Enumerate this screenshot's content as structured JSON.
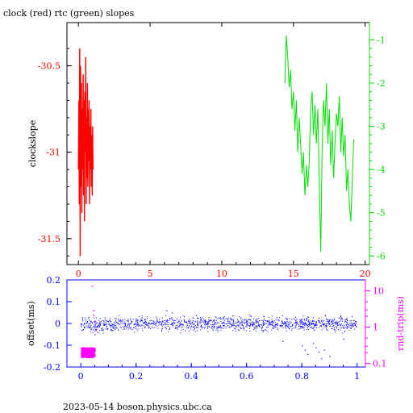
{
  "title": "clock (red) rtc (green) slopes",
  "footer": "2023-05-14 boson.physics.ubc.ca",
  "colors": {
    "clock": "#ff0000",
    "rtc": "#00dd00",
    "offset": "#0000ff",
    "rndtrip": "#ff00ff",
    "frame": "#000000"
  },
  "chart_data": [
    {
      "type": "line",
      "title": "clock (red) rtc (green) slopes",
      "ylabel": "clockslope",
      "x_ticks": [
        0,
        5,
        10,
        15,
        20
      ],
      "xlim": [
        -0.8,
        20.3
      ],
      "ylim": [
        -31.65,
        -30.25
      ],
      "y_ticks": [
        -30.5,
        -31,
        -31.5
      ],
      "y_tick_labels": [
        "-30.5",
        "-31",
        "-31.5"
      ],
      "y2lim": [
        -6.2,
        -0.6
      ],
      "y2_ticks": [
        -1,
        -2,
        -3,
        -4,
        -5,
        -6
      ],
      "y2_tick_labels": [
        "-1",
        "-2",
        "-3",
        "-4",
        "-5",
        "-6"
      ],
      "grid": false,
      "series": [
        {
          "name": "clock",
          "axis": "left",
          "x": [
            0.0,
            0.03,
            0.06,
            0.09,
            0.12,
            0.15,
            0.18,
            0.21,
            0.24,
            0.27,
            0.3,
            0.33,
            0.36,
            0.39,
            0.42,
            0.45,
            0.48,
            0.51,
            0.54,
            0.57,
            0.6,
            0.63,
            0.66,
            0.69,
            0.72,
            0.75,
            0.78,
            0.81,
            0.84,
            0.87,
            0.9,
            0.93,
            0.96,
            0.99,
            1.02
          ],
          "values": [
            -31.1,
            -30.7,
            -31.3,
            -30.4,
            -31.6,
            -30.5,
            -31.2,
            -30.6,
            -31.35,
            -30.75,
            -31.1,
            -30.55,
            -31.25,
            -30.7,
            -31.4,
            -30.65,
            -31.0,
            -30.45,
            -31.3,
            -30.8,
            -31.15,
            -30.6,
            -31.2,
            -30.75,
            -31.05,
            -30.7,
            -31.3,
            -30.85,
            -31.1,
            -30.75,
            -31.2,
            -30.9,
            -31.25,
            -30.85,
            -31.1
          ]
        },
        {
          "name": "rtc",
          "axis": "right",
          "x": [
            14.4,
            14.5,
            14.6,
            14.7,
            14.8,
            14.9,
            15.0,
            15.1,
            15.2,
            15.3,
            15.4,
            15.5,
            15.6,
            15.7,
            15.8,
            15.9,
            16.0,
            16.1,
            16.2,
            16.3,
            16.4,
            16.5,
            16.6,
            16.7,
            16.8,
            16.9,
            17.0,
            17.1,
            17.2,
            17.3,
            17.4,
            17.5,
            17.6,
            17.7,
            17.8,
            17.9,
            18.0,
            18.1,
            18.2,
            18.3,
            18.4,
            18.5,
            18.6,
            18.7,
            18.8,
            18.9,
            19.0,
            19.1,
            19.2
          ],
          "values": [
            -2.0,
            -0.9,
            -1.4,
            -2.1,
            -1.7,
            -2.6,
            -2.2,
            -3.1,
            -2.4,
            -3.6,
            -2.8,
            -3.4,
            -4.1,
            -3.6,
            -4.6,
            -3.9,
            -4.4,
            -3.8,
            -2.6,
            -2.2,
            -3.2,
            -2.5,
            -3.4,
            -2.6,
            -4.3,
            -5.9,
            -3.5,
            -2.4,
            -3.0,
            -2.0,
            -3.4,
            -2.6,
            -3.9,
            -3.1,
            -4.2,
            -3.4,
            -2.7,
            -3.0,
            -2.3,
            -3.6,
            -2.8,
            -3.7,
            -3.2,
            -4.5,
            -4.0,
            -4.8,
            -5.2,
            -4.3,
            -3.3
          ]
        }
      ]
    },
    {
      "type": "scatter",
      "ylabel": "offset(ms)",
      "y2label": "rnd-trip(ms)",
      "x_ticks": [
        0,
        0.2,
        0.4,
        0.6,
        0.8,
        1
      ],
      "x_tick_labels": [
        "0",
        "0.2",
        "0.4",
        "0.6",
        "0.8",
        "1"
      ],
      "xlim": [
        -0.05,
        1.03
      ],
      "ylim": [
        -0.2,
        0.2
      ],
      "y_ticks": [
        0.2,
        0.1,
        0,
        -0.1,
        -0.2
      ],
      "y_tick_labels": [
        "0.2",
        "0.1",
        "0",
        "-0.1",
        "-0.2"
      ],
      "y2_scale": "log",
      "y2lim": [
        0.08,
        20
      ],
      "y2_ticks": [
        10,
        1,
        0.1
      ],
      "y2_tick_labels": [
        "10",
        "1",
        "0.1"
      ],
      "grid": false,
      "series": [
        {
          "name": "offset",
          "axis": "left",
          "band": {
            "x": [
              0.0,
              0.05,
              0.1,
              0.15,
              0.2,
              0.25,
              0.3,
              0.35,
              0.4,
              0.45,
              0.5,
              0.55,
              0.6,
              0.65,
              0.7,
              0.75,
              0.8,
              0.85,
              0.9,
              0.95,
              1.0
            ],
            "mid": [
              0.0,
              -0.01,
              0.0,
              0.0,
              0.0,
              0.0,
              0.0,
              -0.005,
              0.0,
              0.0,
              0.0,
              0.0,
              0.0,
              0.0,
              0.0,
              0.0,
              0.0,
              0.0,
              0.0,
              0.0,
              0.0
            ],
            "spread": 0.03
          },
          "outliers_x": [
            0.05,
            0.06,
            0.31,
            0.33,
            0.73,
            0.8,
            0.81,
            0.82,
            0.84,
            0.85,
            0.86,
            0.87,
            0.88,
            0.9,
            0.95
          ],
          "outliers_y": [
            -0.05,
            -0.04,
            0.06,
            0.05,
            -0.08,
            -0.1,
            -0.12,
            -0.14,
            -0.09,
            -0.11,
            -0.13,
            -0.16,
            -0.12,
            -0.15,
            -0.07
          ]
        },
        {
          "name": "rnd-trip",
          "axis": "right",
          "cluster_x": [
            0.0,
            0.05
          ],
          "cluster_y_range": [
            0.15,
            0.28
          ],
          "outliers_x": [
            0.04,
            0.045,
            0.05,
            0.055,
            0.045
          ],
          "outliers_y": [
            14,
            3,
            1.5,
            0.9,
            2.2
          ]
        }
      ]
    }
  ]
}
